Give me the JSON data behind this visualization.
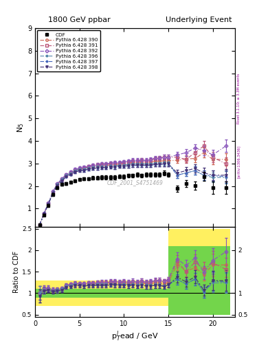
{
  "title_left": "1800 GeV ppbar",
  "title_right": "Underlying Event",
  "ylabel_main": "N$_5$",
  "ylabel_ratio": "Ratio to CDF",
  "xlabel": "p$_T^l$ead / GeV",
  "right_label_top": "Rivet 3.1.10; ≥ 3.3M events",
  "right_label_bot": "[arXiv:1306.3436]",
  "watermark": "CDF_2001_S4751469",
  "xlim": [
    0,
    22.5
  ],
  "ylim_main": [
    0.2,
    9.0
  ],
  "ylim_ratio": [
    0.45,
    2.55
  ],
  "cdf_x": [
    0.5,
    1.0,
    1.5,
    2.0,
    2.5,
    3.0,
    3.5,
    4.0,
    4.5,
    5.0,
    5.5,
    6.0,
    6.5,
    7.0,
    7.5,
    8.0,
    8.5,
    9.0,
    9.5,
    10.0,
    10.5,
    11.0,
    11.5,
    12.0,
    12.5,
    13.0,
    13.5,
    14.0,
    14.5,
    15.0,
    16.0,
    17.0,
    18.0,
    19.0,
    20.0,
    21.5
  ],
  "cdf_y": [
    0.28,
    0.72,
    1.12,
    1.62,
    1.92,
    2.08,
    2.12,
    2.18,
    2.22,
    2.28,
    2.32,
    2.32,
    2.36,
    2.36,
    2.38,
    2.38,
    2.38,
    2.38,
    2.42,
    2.42,
    2.46,
    2.46,
    2.5,
    2.46,
    2.5,
    2.5,
    2.5,
    2.5,
    2.58,
    2.5,
    1.88,
    2.12,
    2.02,
    2.42,
    1.92,
    1.92
  ],
  "cdf_yerr": [
    0.04,
    0.04,
    0.05,
    0.05,
    0.06,
    0.06,
    0.06,
    0.06,
    0.06,
    0.06,
    0.07,
    0.07,
    0.07,
    0.07,
    0.08,
    0.08,
    0.08,
    0.08,
    0.08,
    0.09,
    0.09,
    0.09,
    0.09,
    0.09,
    0.1,
    0.1,
    0.1,
    0.1,
    0.1,
    0.1,
    0.14,
    0.15,
    0.18,
    0.2,
    0.28,
    0.28
  ],
  "mc_x": [
    0.5,
    1.0,
    1.5,
    2.0,
    2.5,
    3.0,
    3.5,
    4.0,
    4.5,
    5.0,
    5.5,
    6.0,
    6.5,
    7.0,
    7.5,
    8.0,
    8.5,
    9.0,
    9.5,
    10.0,
    10.5,
    11.0,
    11.5,
    12.0,
    12.5,
    13.0,
    13.5,
    14.0,
    14.5,
    15.0,
    16.0,
    17.0,
    18.0,
    19.0,
    20.0,
    21.5
  ],
  "mc390_y": [
    0.28,
    0.78,
    1.22,
    1.72,
    2.08,
    2.28,
    2.48,
    2.6,
    2.7,
    2.76,
    2.8,
    2.84,
    2.86,
    2.9,
    2.92,
    2.92,
    2.94,
    2.96,
    2.96,
    3.0,
    3.02,
    3.04,
    3.06,
    3.06,
    3.04,
    3.06,
    3.1,
    3.1,
    3.12,
    3.12,
    3.14,
    3.2,
    3.22,
    3.48,
    3.18,
    3.18
  ],
  "mc391_y": [
    0.28,
    0.78,
    1.22,
    1.72,
    2.08,
    2.28,
    2.48,
    2.6,
    2.7,
    2.76,
    2.8,
    2.86,
    2.9,
    2.94,
    2.96,
    2.96,
    3.0,
    3.0,
    3.0,
    3.04,
    3.06,
    3.1,
    3.1,
    3.14,
    3.1,
    3.14,
    3.2,
    3.24,
    3.28,
    3.28,
    3.28,
    3.18,
    3.48,
    3.78,
    3.28,
    2.98
  ],
  "mc392_y": [
    0.28,
    0.8,
    1.26,
    1.76,
    2.1,
    2.32,
    2.52,
    2.64,
    2.74,
    2.8,
    2.84,
    2.88,
    2.92,
    2.94,
    2.98,
    2.98,
    3.02,
    3.04,
    3.04,
    3.08,
    3.1,
    3.14,
    3.14,
    3.14,
    3.14,
    3.18,
    3.24,
    3.24,
    3.28,
    3.28,
    3.38,
    3.48,
    3.68,
    3.58,
    3.38,
    3.78
  ],
  "mc396_y": [
    0.28,
    0.78,
    1.22,
    1.72,
    2.08,
    2.28,
    2.48,
    2.58,
    2.68,
    2.74,
    2.76,
    2.8,
    2.84,
    2.86,
    2.88,
    2.88,
    2.9,
    2.9,
    2.92,
    2.94,
    2.96,
    2.98,
    2.98,
    2.98,
    2.98,
    2.98,
    3.02,
    3.02,
    3.04,
    3.04,
    2.48,
    2.58,
    2.68,
    2.48,
    2.38,
    2.38
  ],
  "mc397_y": [
    0.26,
    0.76,
    1.2,
    1.68,
    2.02,
    2.22,
    2.42,
    2.52,
    2.62,
    2.68,
    2.7,
    2.74,
    2.78,
    2.8,
    2.82,
    2.82,
    2.84,
    2.84,
    2.88,
    2.88,
    2.9,
    2.92,
    2.92,
    2.92,
    2.92,
    2.92,
    2.96,
    2.96,
    2.98,
    2.98,
    2.48,
    2.58,
    2.68,
    2.48,
    2.46,
    2.42
  ],
  "mc398_y": [
    0.26,
    0.76,
    1.2,
    1.68,
    2.02,
    2.22,
    2.42,
    2.52,
    2.62,
    2.68,
    2.7,
    2.74,
    2.78,
    2.8,
    2.82,
    2.82,
    2.84,
    2.84,
    2.88,
    2.88,
    2.9,
    2.92,
    2.92,
    2.92,
    2.92,
    2.92,
    2.96,
    2.96,
    2.98,
    2.98,
    2.58,
    2.68,
    2.78,
    2.58,
    2.48,
    2.48
  ],
  "mc_yerr": [
    0.02,
    0.03,
    0.03,
    0.04,
    0.04,
    0.05,
    0.05,
    0.05,
    0.06,
    0.06,
    0.06,
    0.06,
    0.07,
    0.07,
    0.07,
    0.07,
    0.07,
    0.08,
    0.08,
    0.08,
    0.08,
    0.09,
    0.09,
    0.09,
    0.09,
    0.09,
    0.1,
    0.1,
    0.1,
    0.1,
    0.13,
    0.15,
    0.18,
    0.22,
    0.22,
    0.28
  ],
  "color_390": "#cc6655",
  "color_391": "#bb5577",
  "color_392": "#8855bb",
  "color_396": "#5588aa",
  "color_397": "#4466bb",
  "color_398": "#443377",
  "bin_edges": [
    0.0,
    0.5,
    1.0,
    1.5,
    2.0,
    2.5,
    3.0,
    3.5,
    4.0,
    4.5,
    5.0,
    5.5,
    6.0,
    6.5,
    7.0,
    7.5,
    8.0,
    8.5,
    9.0,
    9.5,
    10.0,
    10.5,
    11.0,
    11.5,
    12.0,
    12.5,
    13.0,
    13.5,
    14.0,
    14.5,
    15.0,
    15.5,
    16.0,
    16.5,
    17.0,
    17.5,
    18.0,
    18.5,
    19.0,
    19.5,
    20.0,
    20.5,
    21.0,
    21.5,
    22.0
  ],
  "green_lo": 0.9,
  "green_hi": 1.1,
  "yellow_lo": 0.7,
  "yellow_hi": 1.3,
  "green_bins_lo": [
    0.9,
    0.9,
    0.9,
    0.9,
    0.9,
    0.9,
    0.9,
    0.9,
    0.9,
    0.9,
    0.9,
    0.9,
    0.9,
    0.9,
    0.9,
    0.9,
    0.9,
    0.9,
    0.9,
    0.9,
    0.9,
    0.9,
    0.9,
    0.9,
    0.9,
    0.9,
    0.9,
    0.9,
    0.9,
    0.9,
    0.5,
    0.5,
    0.5,
    0.5,
    0.5,
    0.5
  ],
  "green_bins_hi": [
    1.1,
    1.1,
    1.1,
    1.1,
    1.1,
    1.1,
    1.1,
    1.1,
    1.1,
    1.1,
    1.1,
    1.1,
    1.1,
    1.1,
    1.1,
    1.1,
    1.1,
    1.1,
    1.1,
    1.1,
    1.1,
    1.1,
    1.1,
    1.1,
    1.1,
    1.1,
    1.1,
    1.1,
    1.1,
    1.1,
    2.1,
    2.1,
    2.1,
    2.1,
    2.1,
    2.1
  ],
  "yellow_bins_lo": [
    0.7,
    0.7,
    0.7,
    0.7,
    0.7,
    0.7,
    0.7,
    0.7,
    0.7,
    0.7,
    0.7,
    0.7,
    0.7,
    0.7,
    0.7,
    0.7,
    0.7,
    0.7,
    0.7,
    0.7,
    0.7,
    0.7,
    0.7,
    0.7,
    0.7,
    0.7,
    0.7,
    0.7,
    0.7,
    0.7,
    0.5,
    0.5,
    0.5,
    0.5,
    0.5,
    0.5
  ],
  "yellow_bins_hi": [
    1.3,
    1.3,
    1.3,
    1.3,
    1.3,
    1.3,
    1.3,
    1.3,
    1.3,
    1.3,
    1.3,
    1.3,
    1.3,
    1.3,
    1.3,
    1.3,
    1.3,
    1.3,
    1.3,
    1.3,
    1.3,
    1.3,
    1.3,
    1.3,
    1.3,
    1.3,
    1.3,
    1.3,
    1.3,
    1.3,
    2.5,
    2.5,
    2.5,
    2.5,
    2.5,
    2.5
  ]
}
